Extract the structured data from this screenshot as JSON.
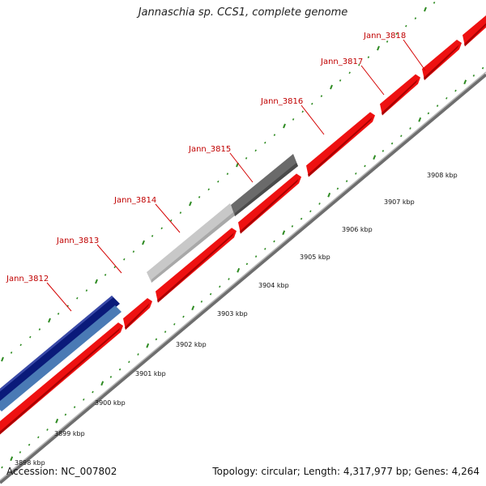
{
  "title": "Jannaschia sp. CCS1, complete genome",
  "footer": {
    "accession": "Accession: NC_007802",
    "summary": "Topology: circular; Length: 4,317,977 bp; Genes: 4,264"
  },
  "colors": {
    "forward_gene": "#ee1111",
    "forward_gene_dark": "#aa0000",
    "backbone": "#888888",
    "tick": "#2e8b22",
    "label": "#c00000",
    "navy_feature": "#0a1a7a",
    "steelblue_feature": "#4a7ab5",
    "light_gray_feature": "#c8c8c8",
    "dark_gray_feature": "#666666"
  },
  "genes": [
    {
      "name": "Jann_3812"
    },
    {
      "name": "Jann_3813"
    },
    {
      "name": "Jann_3814"
    },
    {
      "name": "Jann_3815"
    },
    {
      "name": "Jann_3816"
    },
    {
      "name": "Jann_3817"
    },
    {
      "name": "Jann_3818"
    }
  ],
  "scale_labels": [
    {
      "text": "3898 kbp"
    },
    {
      "text": "3899 kbp"
    },
    {
      "text": "3900 kbp"
    },
    {
      "text": "3901 kbp"
    },
    {
      "text": "3902 kbp"
    },
    {
      "text": "3903 kbp"
    },
    {
      "text": "3904 kbp"
    },
    {
      "text": "3905 kbp"
    },
    {
      "text": "3906 kbp"
    },
    {
      "text": "3907 kbp"
    },
    {
      "text": "3908 kbp"
    }
  ]
}
